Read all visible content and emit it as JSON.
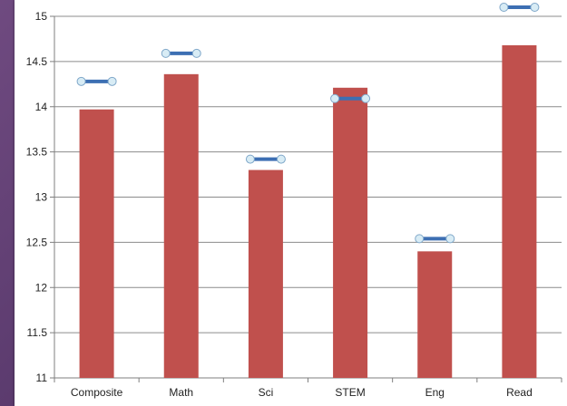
{
  "chart_data": {
    "type": "bar",
    "title": "",
    "xlabel": "",
    "ylabel": "",
    "categories": [
      "Composite",
      "Math",
      "Sci",
      "STEM",
      "Eng",
      "Read"
    ],
    "ylim": [
      11,
      15
    ],
    "yticks": [
      "11",
      "11.5",
      "12",
      "12.5",
      "13",
      "13.5",
      "14",
      "14.5",
      "15"
    ],
    "grid": true,
    "series": [
      {
        "type": "bar",
        "values": [
          13.97,
          14.36,
          13.3,
          14.21,
          12.4,
          14.68
        ]
      },
      {
        "type": "marker",
        "values": [
          14.28,
          14.59,
          13.42,
          14.09,
          12.54,
          15.1
        ]
      }
    ],
    "colors": {
      "bar": "#c0504d",
      "marker_line": "#3d6fb3",
      "marker_fill": "#d8ecf5",
      "grid": "#8c8c8c",
      "axis": "#7f7f7f"
    }
  }
}
